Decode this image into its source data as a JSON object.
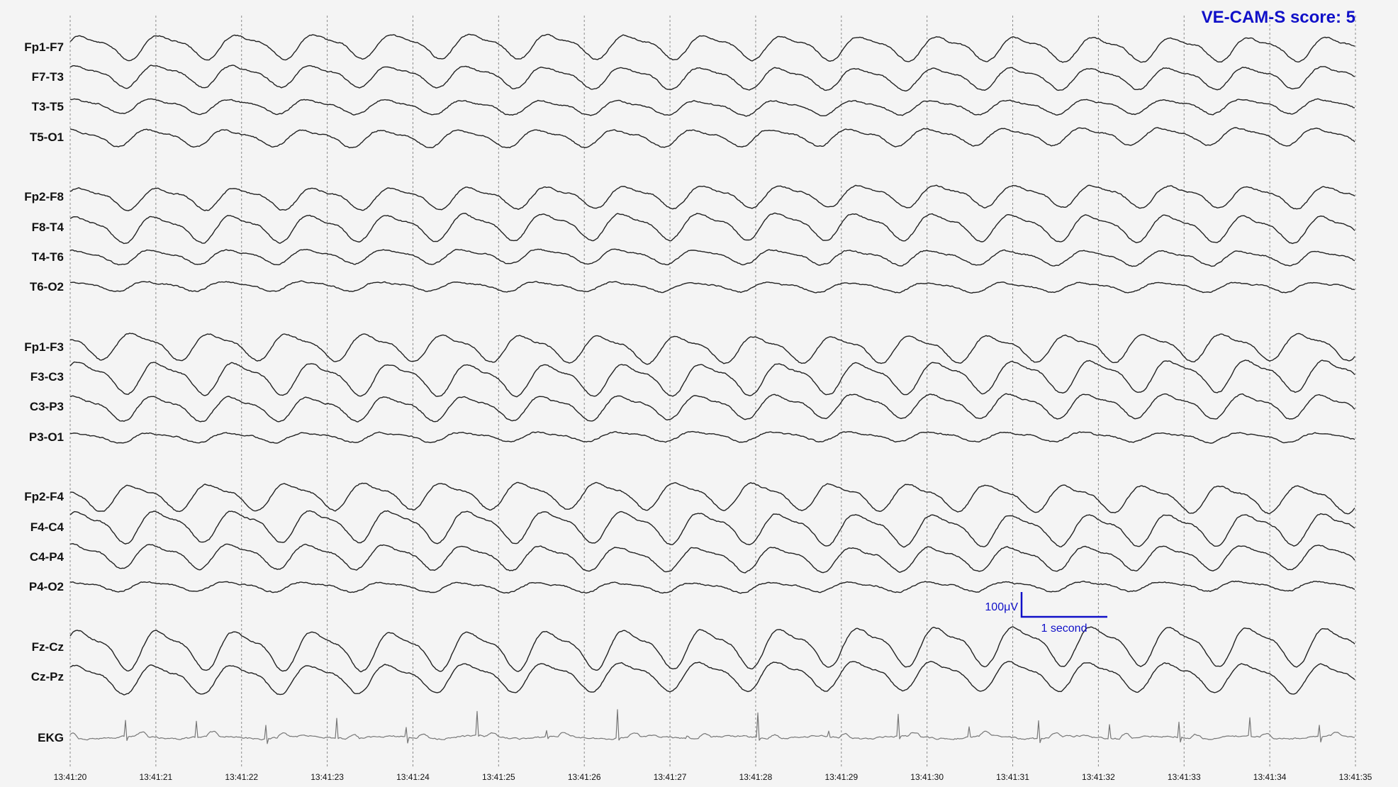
{
  "score_text": "VE-CAM-S score: 5",
  "colors": {
    "trace": "#222222",
    "ekg": "#777777",
    "accent": "#1010c8",
    "grid": "#8a8a8a",
    "background": "#f4f4f4"
  },
  "chart_data": {
    "type": "line",
    "title": "VE-CAM-S score: 5",
    "x": {
      "start": "13:41:20",
      "end": "13:41:35",
      "ticks": [
        "13:41:20",
        "13:41:21",
        "13:41:22",
        "13:41:23",
        "13:41:24",
        "13:41:25",
        "13:41:26",
        "13:41:27",
        "13:41:28",
        "13:41:29",
        "13:41:30",
        "13:41:31",
        "13:41:32",
        "13:41:33",
        "13:41:34",
        "13:41:35"
      ]
    },
    "grid": true,
    "scale_bar": {
      "amplitude_label": "100μV",
      "time_label": "1 second"
    },
    "series": [
      {
        "name": "Fp1-F7",
        "group": 1,
        "amplitude": 1.0,
        "freq_hz": 1.1,
        "phase": 0.2
      },
      {
        "name": "F7-T3",
        "group": 1,
        "amplitude": 0.9,
        "freq_hz": 1.1,
        "phase": 0.5
      },
      {
        "name": "T3-T5",
        "group": 1,
        "amplitude": 0.6,
        "freq_hz": 1.1,
        "phase": 0.8
      },
      {
        "name": "T5-O1",
        "group": 1,
        "amplitude": 0.7,
        "freq_hz": 1.1,
        "phase": 1.1
      },
      {
        "name": "Fp2-F8",
        "group": 2,
        "amplitude": 0.9,
        "freq_hz": 1.1,
        "phase": 0.3
      },
      {
        "name": "F8-T4",
        "group": 2,
        "amplitude": 1.1,
        "freq_hz": 1.1,
        "phase": 0.6
      },
      {
        "name": "T4-T6",
        "group": 2,
        "amplitude": 0.6,
        "freq_hz": 1.1,
        "phase": 0.9
      },
      {
        "name": "T6-O2",
        "group": 2,
        "amplitude": 0.4,
        "freq_hz": 1.1,
        "phase": 1.2
      },
      {
        "name": "Fp1-F3",
        "group": 3,
        "amplitude": 1.1,
        "freq_hz": 1.1,
        "phase": 2.4
      },
      {
        "name": "F3-C3",
        "group": 3,
        "amplitude": 1.3,
        "freq_hz": 1.1,
        "phase": 0.4
      },
      {
        "name": "C3-P3",
        "group": 3,
        "amplitude": 1.0,
        "freq_hz": 1.1,
        "phase": 0.7
      },
      {
        "name": "P3-O1",
        "group": 3,
        "amplitude": 0.4,
        "freq_hz": 1.1,
        "phase": 1.0
      },
      {
        "name": "Fp2-F4",
        "group": 4,
        "amplitude": 1.1,
        "freq_hz": 1.1,
        "phase": 2.5
      },
      {
        "name": "F4-C4",
        "group": 4,
        "amplitude": 1.3,
        "freq_hz": 1.1,
        "phase": 0.5
      },
      {
        "name": "C4-P4",
        "group": 4,
        "amplitude": 1.0,
        "freq_hz": 1.1,
        "phase": 0.8
      },
      {
        "name": "P4-O2",
        "group": 4,
        "amplitude": 0.4,
        "freq_hz": 1.1,
        "phase": 1.1
      },
      {
        "name": "Fz-Cz",
        "group": 5,
        "amplitude": 1.6,
        "freq_hz": 1.1,
        "phase": 0.3
      },
      {
        "name": "Cz-Pz",
        "group": 5,
        "amplitude": 1.2,
        "freq_hz": 1.1,
        "phase": 0.6
      },
      {
        "name": "EKG",
        "group": 6,
        "amplitude": 1.0,
        "freq_hz": 1.22,
        "phase": 0.0
      }
    ]
  }
}
